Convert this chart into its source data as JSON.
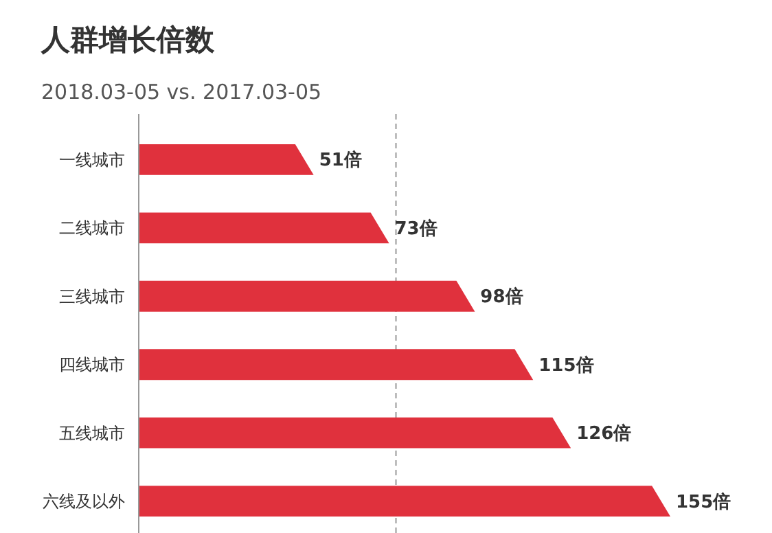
{
  "chart_data": {
    "type": "bar",
    "orientation": "horizontal",
    "title": "人群增长倍数",
    "subtitle": "2018.03-05 vs. 2017.03-05",
    "categories": [
      "一线城市",
      "二线城市",
      "三线城市",
      "四线城市",
      "五线城市",
      "六线及以外"
    ],
    "values": [
      51,
      73,
      98,
      115,
      126,
      155
    ],
    "value_labels": [
      "51倍",
      "73倍",
      "98倍",
      "115倍",
      "126倍",
      "155倍"
    ],
    "color": "#e0313d",
    "ref_lines": [
      {
        "axis": "x",
        "value": 75,
        "line_style": "dashed",
        "color": "#999999"
      }
    ]
  }
}
